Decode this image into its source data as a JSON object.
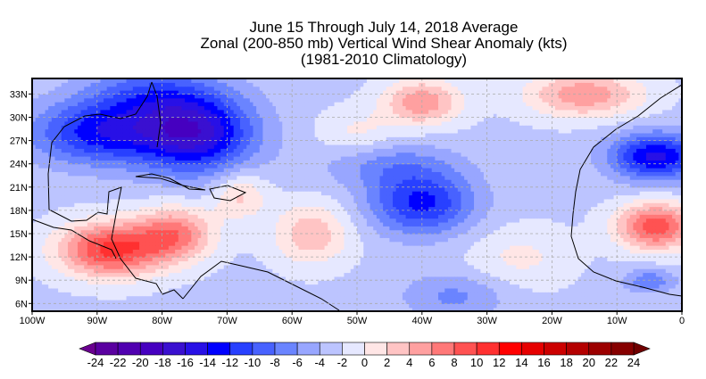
{
  "title": [
    "June 15 Through July 14, 2018 Average",
    "Zonal (200-850 mb) Vertical Wind Shear Anomaly (kts)",
    "(1981-2010 Climatology)"
  ],
  "chart_data": {
    "type": "heatmap",
    "units": "kts",
    "lon_range": [
      -100,
      0
    ],
    "lat_range": [
      5,
      35
    ],
    "x_ticks": [
      "100W",
      "90W",
      "80W",
      "70W",
      "60W",
      "50W",
      "40W",
      "30W",
      "20W",
      "10W",
      "0"
    ],
    "x_tick_values": [
      -100,
      -90,
      -80,
      -70,
      -60,
      -50,
      -40,
      -30,
      -20,
      -10,
      0
    ],
    "y_ticks": [
      "6N",
      "9N",
      "12N",
      "15N",
      "18N",
      "21N",
      "24N",
      "27N",
      "30N",
      "33N"
    ],
    "y_tick_values": [
      6,
      9,
      12,
      15,
      18,
      21,
      24,
      27,
      30,
      33
    ],
    "background_anomaly": -2.5,
    "features": [
      {
        "lon": -75,
        "lat": 28,
        "value": -14,
        "slon": 9,
        "slat": 5
      },
      {
        "lon": -90,
        "lat": 28,
        "value": -10,
        "slon": 10,
        "slat": 4
      },
      {
        "lon": -82,
        "lat": 33,
        "value": -6,
        "slon": 10,
        "slat": 4
      },
      {
        "lon": -40,
        "lat": 19,
        "value": -10,
        "slon": 8,
        "slat": 4
      },
      {
        "lon": -45,
        "lat": 24,
        "value": -4,
        "slon": 10,
        "slat": 3
      },
      {
        "lon": -4,
        "lat": 25,
        "value": -12,
        "slon": 7,
        "slat": 3
      },
      {
        "lon": -88,
        "lat": 13,
        "value": 13,
        "slon": 8,
        "slat": 3.5
      },
      {
        "lon": -78,
        "lat": 15,
        "value": 9,
        "slon": 6,
        "slat": 3.5
      },
      {
        "lon": -40,
        "lat": 32,
        "value": 8,
        "slon": 6,
        "slat": 3
      },
      {
        "lon": -15,
        "lat": 33,
        "value": 8,
        "slon": 9,
        "slat": 3
      },
      {
        "lon": -4,
        "lat": 16,
        "value": 12,
        "slon": 6,
        "slat": 3
      },
      {
        "lon": -57,
        "lat": 15,
        "value": 6,
        "slon": 6,
        "slat": 4
      },
      {
        "lon": -68,
        "lat": 20,
        "value": 5,
        "slon": 4,
        "slat": 3
      },
      {
        "lon": -35,
        "lat": 7,
        "value": -4,
        "slon": 8,
        "slat": 3
      },
      {
        "lon": -5,
        "lat": 9,
        "value": -5,
        "slon": 4,
        "slat": 1.5
      },
      {
        "lon": -50,
        "lat": 28,
        "value": 3,
        "slon": 6,
        "slat": 3
      },
      {
        "lon": -25,
        "lat": 12,
        "value": 3,
        "slon": 8,
        "slat": 4
      }
    ],
    "colorbar": {
      "levels": [
        -24,
        -22,
        -20,
        -18,
        -16,
        -14,
        -12,
        -10,
        -8,
        -6,
        -4,
        -2,
        0,
        2,
        4,
        6,
        8,
        10,
        12,
        14,
        16,
        18,
        20,
        22,
        24
      ],
      "labels": [
        "-24",
        "-22",
        "-20",
        "-18",
        "-16",
        "-14",
        "-12",
        "-10",
        "-8",
        "-6",
        "-4",
        "-2",
        "0",
        "2",
        "4",
        "6",
        "8",
        "10",
        "12",
        "14",
        "16",
        "18",
        "20",
        "22",
        "24"
      ],
      "colors": [
        "#6a0090",
        "#5a00a0",
        "#5000b0",
        "#4600c0",
        "#3a10d0",
        "#2810e6",
        "#0000ff",
        "#2840ff",
        "#4862ff",
        "#6a84ff",
        "#98a6ff",
        "#bcc4ff",
        "#e6e8ff",
        "#ffe6e6",
        "#ffc4c4",
        "#ffa0a0",
        "#ff7878",
        "#ff5252",
        "#ff3030",
        "#ff0000",
        "#e60000",
        "#cc0000",
        "#b40000",
        "#9c0000",
        "#860000",
        "#700000"
      ]
    }
  }
}
